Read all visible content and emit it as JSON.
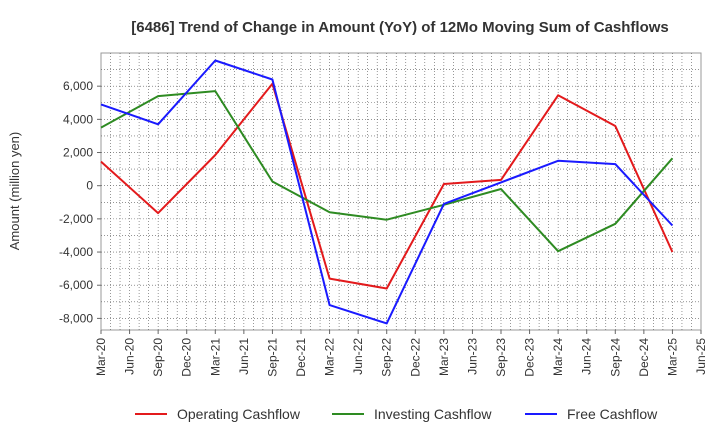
{
  "chart_data": {
    "type": "line",
    "title": "[6486]  Trend of Change in Amount (YoY) of 12Mo Moving Sum of Cashflows",
    "xlabel": "",
    "ylabel": "Amount (million yen)",
    "ylim": [
      -8700,
      8000
    ],
    "y_ticks": [
      -8000,
      -6000,
      -4000,
      -2000,
      0,
      2000,
      4000,
      6000
    ],
    "y_tick_labels": [
      "-8,000",
      "-6,000",
      "-4,000",
      "-2,000",
      "0",
      "2,000",
      "4,000",
      "6,000"
    ],
    "x_tick_labels": [
      "Mar-20",
      "Jun-20",
      "Sep-20",
      "Dec-20",
      "Mar-21",
      "Jun-21",
      "Sep-21",
      "Dec-21",
      "Mar-22",
      "Jun-22",
      "Sep-22",
      "Dec-22",
      "Mar-23",
      "Jun-23",
      "Sep-23",
      "Dec-23",
      "Mar-24",
      "Jun-24",
      "Sep-24",
      "Dec-24",
      "Mar-25",
      "Jun-25"
    ],
    "grid": true,
    "legend_position": "bottom",
    "series": [
      {
        "name": "Operating Cashflow",
        "color": "#e31a1c",
        "points": [
          {
            "x": "Mar-20",
            "y": 1450
          },
          {
            "x": "Sep-20",
            "y": -1650
          },
          {
            "x": "Mar-21",
            "y": 1850
          },
          {
            "x": "Sep-21",
            "y": 6150
          },
          {
            "x": "Mar-22",
            "y": -5600
          },
          {
            "x": "Sep-22",
            "y": -6200
          },
          {
            "x": "Mar-23",
            "y": 100
          },
          {
            "x": "Sep-23",
            "y": 350
          },
          {
            "x": "Mar-24",
            "y": 5450
          },
          {
            "x": "Sep-24",
            "y": 3600
          },
          {
            "x": "Mar-25",
            "y": -4000
          }
        ]
      },
      {
        "name": "Investing Cashflow",
        "color": "#2e8b22",
        "points": [
          {
            "x": "Mar-20",
            "y": 3500
          },
          {
            "x": "Sep-20",
            "y": 5400
          },
          {
            "x": "Mar-21",
            "y": 5700
          },
          {
            "x": "Sep-21",
            "y": 250
          },
          {
            "x": "Mar-22",
            "y": -1600
          },
          {
            "x": "Sep-22",
            "y": -2050
          },
          {
            "x": "Mar-23",
            "y": -1150
          },
          {
            "x": "Sep-23",
            "y": -200
          },
          {
            "x": "Mar-24",
            "y": -3950
          },
          {
            "x": "Sep-24",
            "y": -2300
          },
          {
            "x": "Mar-25",
            "y": 1650
          }
        ]
      },
      {
        "name": "Free Cashflow",
        "color": "#1a1aff",
        "points": [
          {
            "x": "Mar-20",
            "y": 4900
          },
          {
            "x": "Sep-20",
            "y": 3700
          },
          {
            "x": "Mar-21",
            "y": 7550
          },
          {
            "x": "Sep-21",
            "y": 6400
          },
          {
            "x": "Mar-22",
            "y": -7200
          },
          {
            "x": "Sep-22",
            "y": -8300
          },
          {
            "x": "Mar-23",
            "y": -1100
          },
          {
            "x": "Sep-23",
            "y": 200
          },
          {
            "x": "Mar-24",
            "y": 1500
          },
          {
            "x": "Sep-24",
            "y": 1300
          },
          {
            "x": "Mar-25",
            "y": -2400
          }
        ]
      }
    ]
  }
}
